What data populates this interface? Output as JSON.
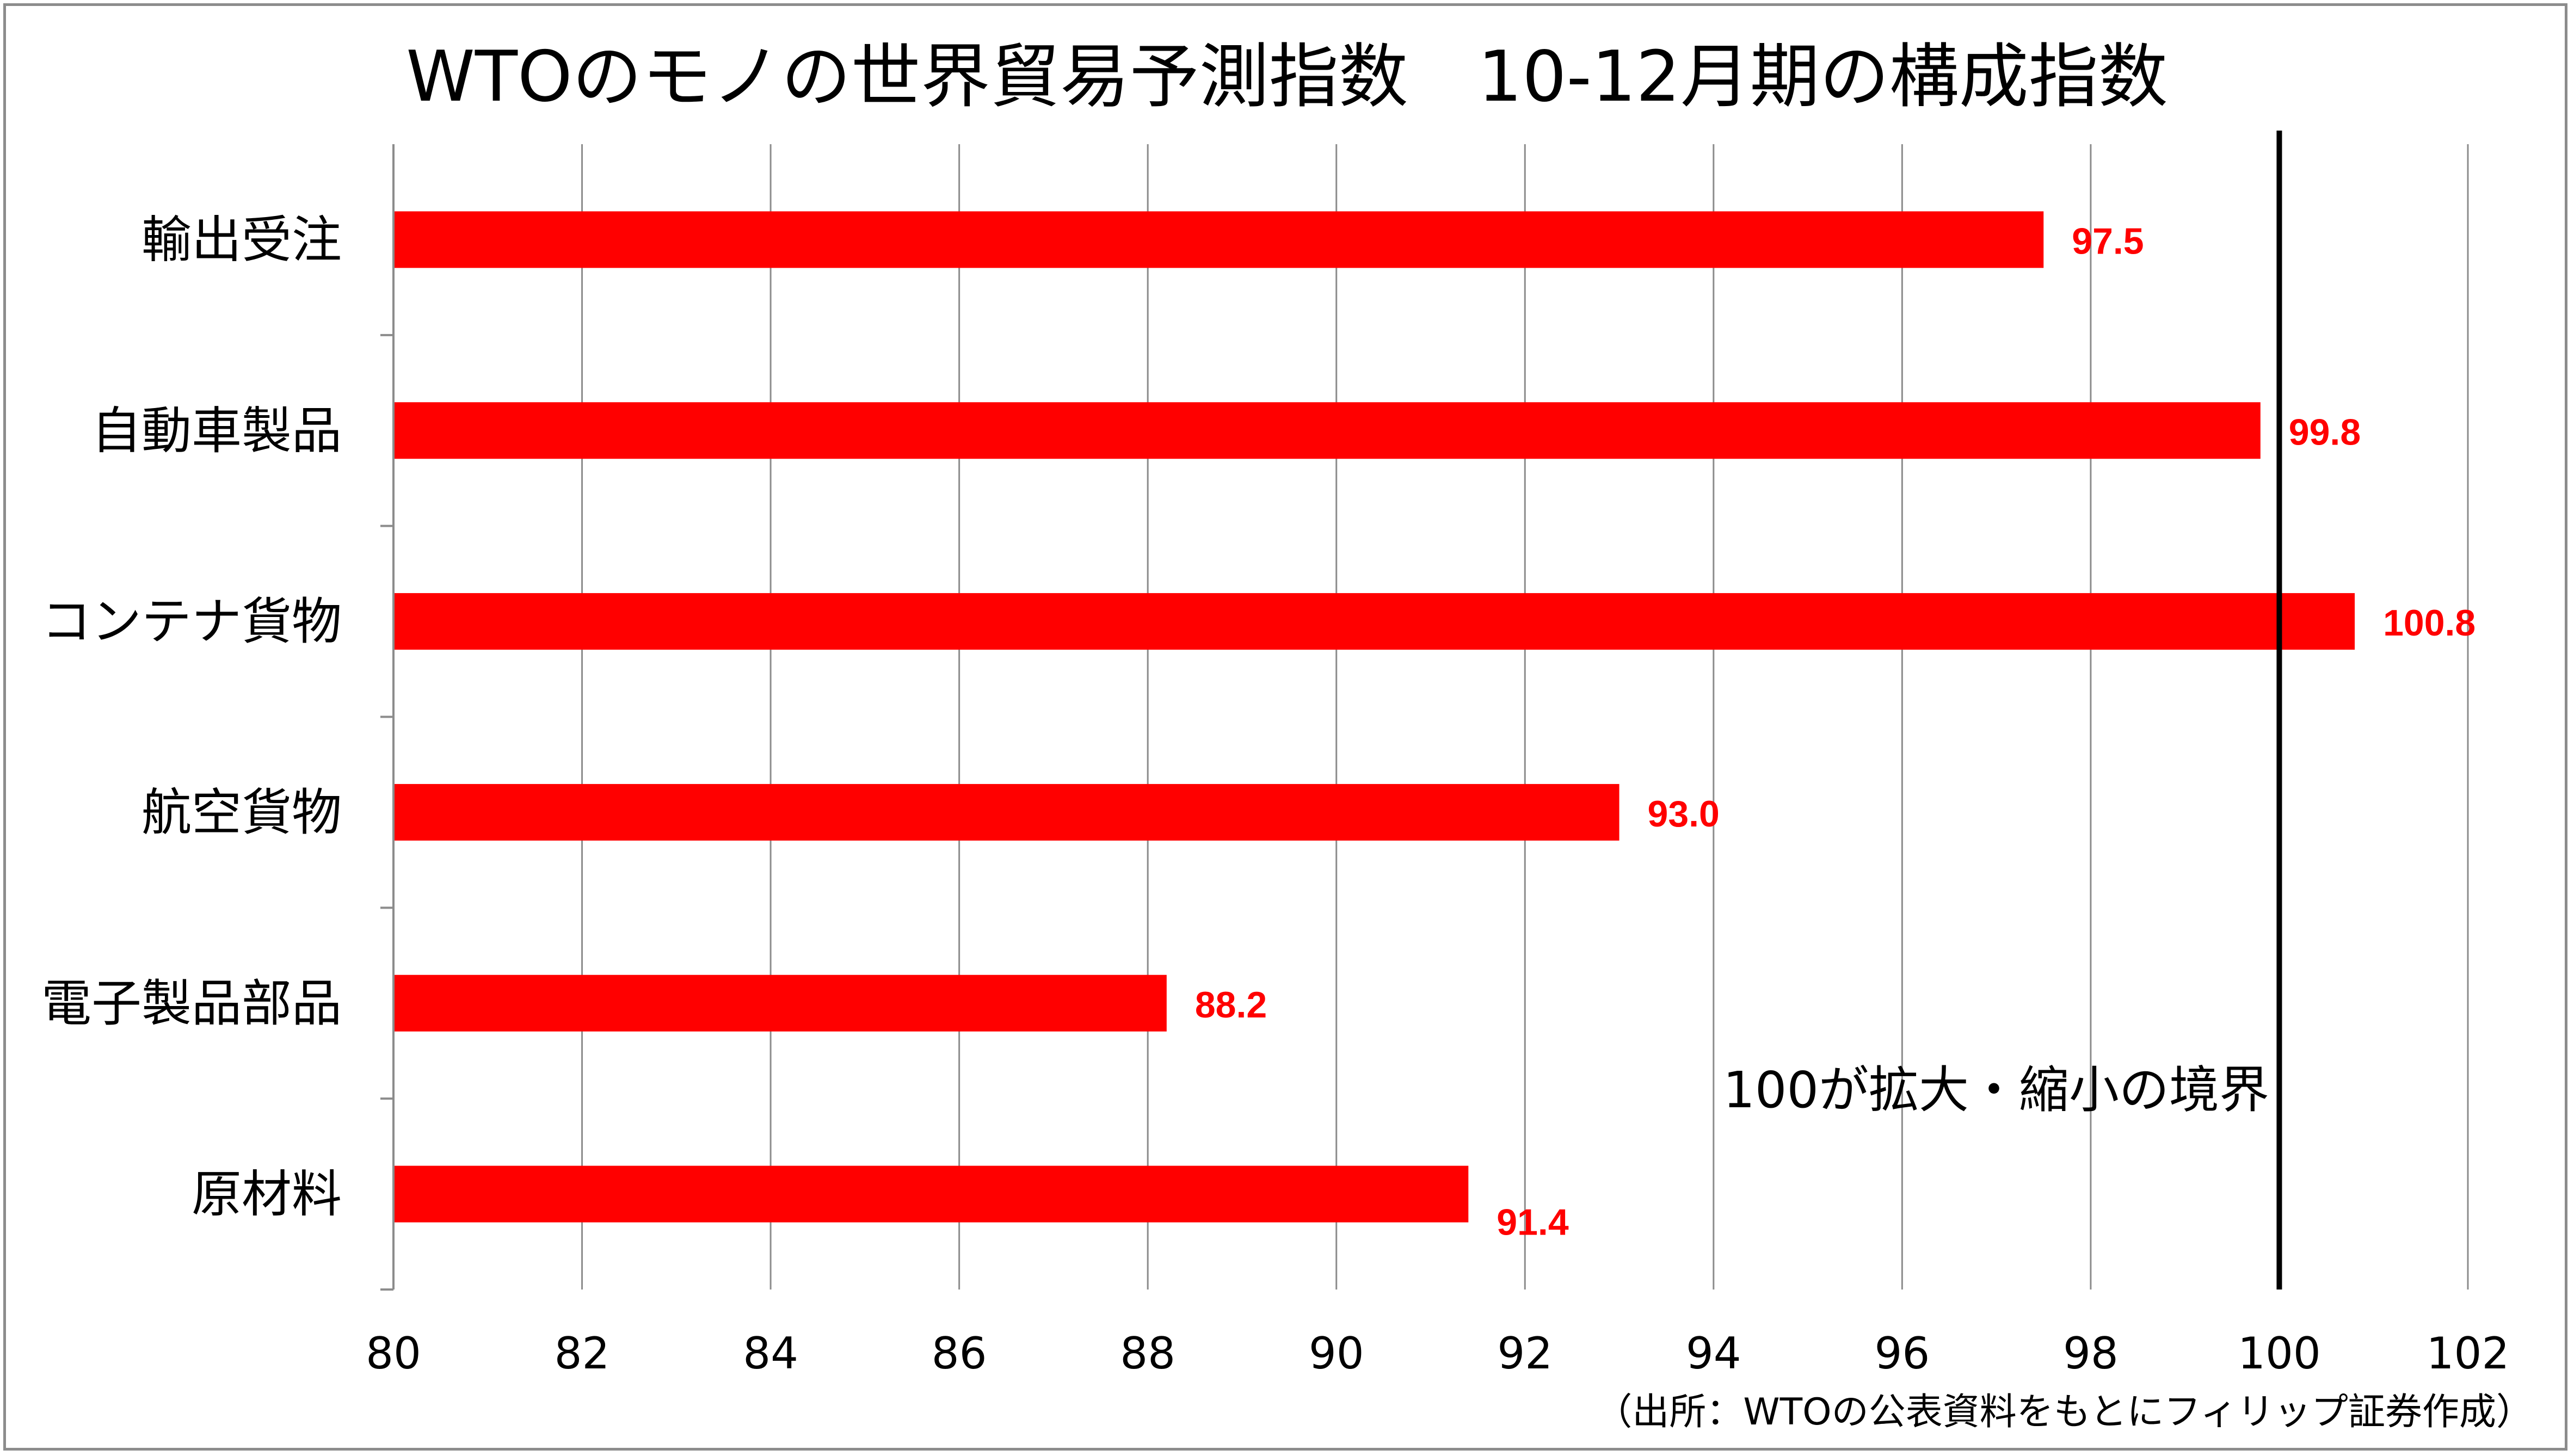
{
  "chart_data": {
    "type": "bar",
    "orientation": "horizontal",
    "title": "WTOのモノの世界貿易予測指数　10-12月期の構成指数",
    "categories": [
      "輸出受注",
      "自動車製品",
      "コンテナ貨物",
      "航空貨物",
      "電子製品部品",
      "原材料"
    ],
    "values": [
      97.5,
      99.8,
      100.8,
      93.0,
      88.2,
      91.4
    ],
    "value_labels": [
      "97.5",
      "99.8",
      "100.8",
      "93.0",
      "88.2",
      "91.4"
    ],
    "xlim": [
      80,
      102
    ],
    "x_ticks": [
      80,
      82,
      84,
      86,
      88,
      90,
      92,
      94,
      96,
      98,
      100,
      102
    ],
    "grid": "vertical",
    "reference_line": {
      "value": 100,
      "label": "100が拡大・縮小の境界"
    },
    "bar_color": "#ff0000",
    "label_color": "#ff0000",
    "source": "（出所：WTOの公表資料をもとにフィリップ証券作成）"
  }
}
